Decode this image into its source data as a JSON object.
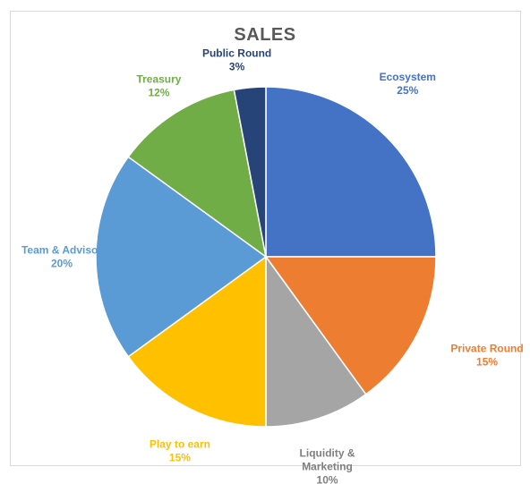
{
  "chart_data": {
    "type": "pie",
    "title": "SALES",
    "start_angle_deg": 0,
    "direction": "clockwise",
    "slices": [
      {
        "name": "Ecosystem",
        "value": 25,
        "value_label": "25%",
        "label_lines": [
          "Ecosystem",
          "25%"
        ],
        "color": "#4472C4"
      },
      {
        "name": "Private Round",
        "value": 15,
        "value_label": "15%",
        "label_lines": [
          "Private Round",
          "15%"
        ],
        "color": "#ED7D31"
      },
      {
        "name": "Liquidity & Marketing",
        "value": 10,
        "value_label": "10%",
        "label_lines": [
          "Liquidity &",
          "Marketing",
          "10%"
        ],
        "color": "#A5A5A5"
      },
      {
        "name": "Play to earn",
        "value": 15,
        "value_label": "15%",
        "label_lines": [
          "Play to earn",
          "15%"
        ],
        "color": "#FFC000"
      },
      {
        "name": "Team & Advisor",
        "value": 20,
        "value_label": "20%",
        "label_lines": [
          "Team & Advisor",
          "20%"
        ],
        "color": "#5B9BD5"
      },
      {
        "name": "Treasury",
        "value": 12,
        "value_label": "12%",
        "label_lines": [
          "Treasury",
          "12%"
        ],
        "color": "#70AD47"
      },
      {
        "name": "Public Round",
        "value": 3,
        "value_label": "3%",
        "label_lines": [
          "Public Round",
          "3%"
        ],
        "color": "#264478"
      }
    ],
    "label_colors": {
      "Ecosystem": "#4472C4",
      "Private Round": "#ED7D31",
      "Liquidity & Marketing": "#7F7F7F",
      "Play to earn": "#FFC000",
      "Team & Advisor": "#5B9BD5",
      "Treasury": "#70AD47",
      "Public Round": "#264478"
    },
    "legend": "none",
    "data_labels": "outside"
  }
}
